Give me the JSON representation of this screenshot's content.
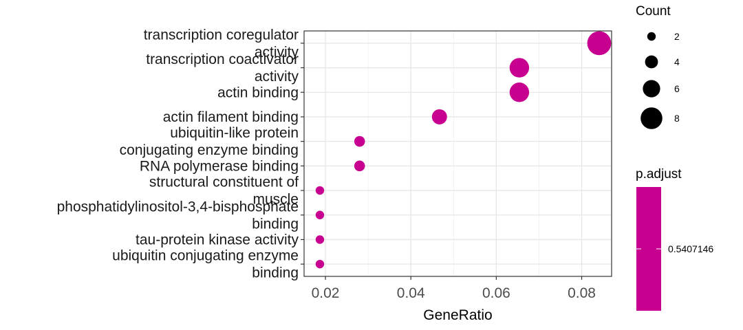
{
  "chart_data": {
    "type": "scatter",
    "xlabel": "GeneRatio",
    "ylabel": "",
    "xlim": [
      0.015,
      0.087
    ],
    "xticks": [
      "0.02",
      "0.04",
      "0.06",
      "0.08"
    ],
    "xtick_values": [
      0.02,
      0.04,
      0.06,
      0.08
    ],
    "grid": true,
    "point_color": "#C8008F",
    "categories": [
      {
        "label_lines": [
          "transcription coregulator",
          "activity"
        ],
        "generatio": 0.0841,
        "count": 9
      },
      {
        "label_lines": [
          "transcription coactivator",
          "activity"
        ],
        "generatio": 0.0654,
        "count": 7
      },
      {
        "label_lines": [
          "actin binding"
        ],
        "generatio": 0.0654,
        "count": 7
      },
      {
        "label_lines": [
          "actin filament binding"
        ],
        "generatio": 0.0467,
        "count": 5
      },
      {
        "label_lines": [
          "ubiquitin-like protein",
          "conjugating enzyme binding"
        ],
        "generatio": 0.028,
        "count": 3
      },
      {
        "label_lines": [
          "RNA polymerase binding"
        ],
        "generatio": 0.028,
        "count": 3
      },
      {
        "label_lines": [
          "structural constituent of",
          "muscle"
        ],
        "generatio": 0.0187,
        "count": 2
      },
      {
        "label_lines": [
          "phosphatidylinositol-3,4-bisphosphate",
          "binding"
        ],
        "generatio": 0.0187,
        "count": 2
      },
      {
        "label_lines": [
          "tau-protein kinase activity"
        ],
        "generatio": 0.0187,
        "count": 2
      },
      {
        "label_lines": [
          "ubiquitin conjugating enzyme",
          "binding"
        ],
        "generatio": 0.0187,
        "count": 2
      }
    ],
    "legend_size": {
      "title": "Count",
      "entries": [
        {
          "label": "2",
          "count": 2
        },
        {
          "label": "4",
          "count": 4
        },
        {
          "label": "6",
          "count": 6
        },
        {
          "label": "8",
          "count": 8
        }
      ]
    },
    "legend_color": {
      "title": "p.adjust",
      "value_label": "0.5407146",
      "color": "#C8008F"
    }
  }
}
